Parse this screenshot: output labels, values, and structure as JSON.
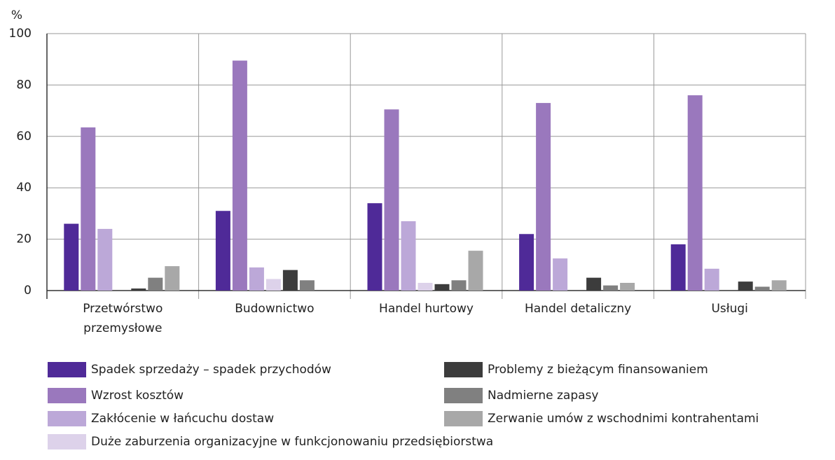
{
  "chart_data": {
    "type": "bar",
    "y_label": "%",
    "categories": [
      "Przetwórstwo przemysłowe",
      "Budownictwo",
      "Handel hurtowy",
      "Handel detaliczny",
      "Usługi"
    ],
    "series": [
      {
        "name": "Spadek sprzedaży – spadek przychodów",
        "color": "#4f2a98",
        "values": [
          26,
          31,
          34,
          22,
          18
        ]
      },
      {
        "name": "Wzrost kosztów",
        "color": "#9a78bd",
        "values": [
          63.5,
          89.5,
          70.5,
          73,
          76
        ]
      },
      {
        "name": "Zakłócenie w łańcuchu dostaw",
        "color": "#bca8d8",
        "values": [
          24,
          9,
          27,
          12.5,
          8.5
        ]
      },
      {
        "name": "Duże zaburzenia organizacyjne w funkcjonowaniu przedsiębiorstwa",
        "color": "#ddd2ea",
        "values": [
          0,
          4.5,
          3,
          0,
          0
        ]
      },
      {
        "name": "Problemy z bieżącym finansowaniem",
        "color": "#3c3c3c",
        "values": [
          0.8,
          8,
          2.5,
          5,
          3.5
        ]
      },
      {
        "name": "Nadmierne zapasy",
        "color": "#808080",
        "values": [
          5,
          4,
          4,
          2,
          1.5
        ]
      },
      {
        "name": "Zerwanie umów z wschodnimi kontrahentami",
        "color": "#a8a8a8",
        "values": [
          9.5,
          0,
          15.5,
          3,
          4
        ]
      }
    ],
    "ylim": [
      0,
      100
    ],
    "yticks": [
      0,
      20,
      40,
      60,
      80,
      100
    ],
    "grid": true
  }
}
